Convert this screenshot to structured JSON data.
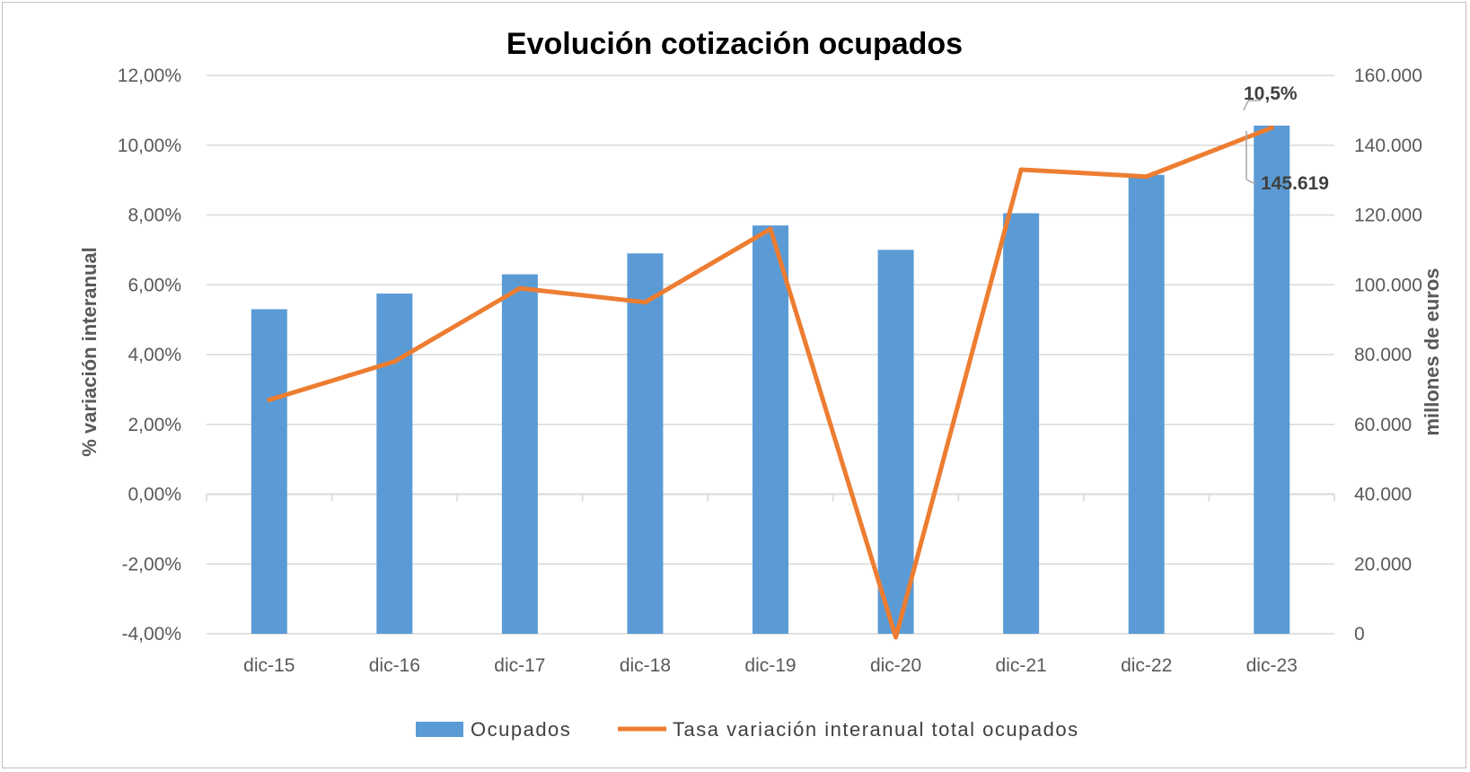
{
  "chart_data": {
    "type": "bar",
    "title": "Evolución cotización ocupados",
    "categories": [
      "dic-15",
      "dic-16",
      "dic-17",
      "dic-18",
      "dic-19",
      "dic-20",
      "dic-21",
      "dic-22",
      "dic-23"
    ],
    "left_axis": {
      "label": "% variación interanual",
      "min": -4,
      "max": 12,
      "step": 2,
      "ticks": [
        "-4,00%",
        "-2,00%",
        "0,00%",
        "2,00%",
        "4,00%",
        "6,00%",
        "8,00%",
        "10,00%",
        "12,00%"
      ]
    },
    "right_axis": {
      "label": "millones de euros",
      "min": 0,
      "max": 160000,
      "step": 20000,
      "ticks": [
        "0",
        "20.000",
        "40.000",
        "60.000",
        "80.000",
        "100.000",
        "120.000",
        "140.000",
        "160.000"
      ]
    },
    "series": [
      {
        "name": "Ocupados",
        "type": "bar",
        "axis": "right",
        "color": "#5b9bd5",
        "values": [
          93000,
          97500,
          103000,
          109000,
          117000,
          110000,
          120500,
          131500,
          145619
        ]
      },
      {
        "name": "Tasa variación interanual total ocupados",
        "type": "line",
        "axis": "left",
        "color": "#ed7d31",
        "values": [
          2.7,
          3.8,
          5.9,
          5.5,
          7.6,
          -4.1,
          9.3,
          9.1,
          10.5
        ]
      }
    ],
    "annotations": [
      {
        "text": "10,5%",
        "category": "dic-23",
        "series": "Tasa variación interanual total ocupados"
      },
      {
        "text": "145.619",
        "category": "dic-23",
        "series": "Ocupados"
      }
    ],
    "grid": true,
    "legend_position": "bottom"
  }
}
